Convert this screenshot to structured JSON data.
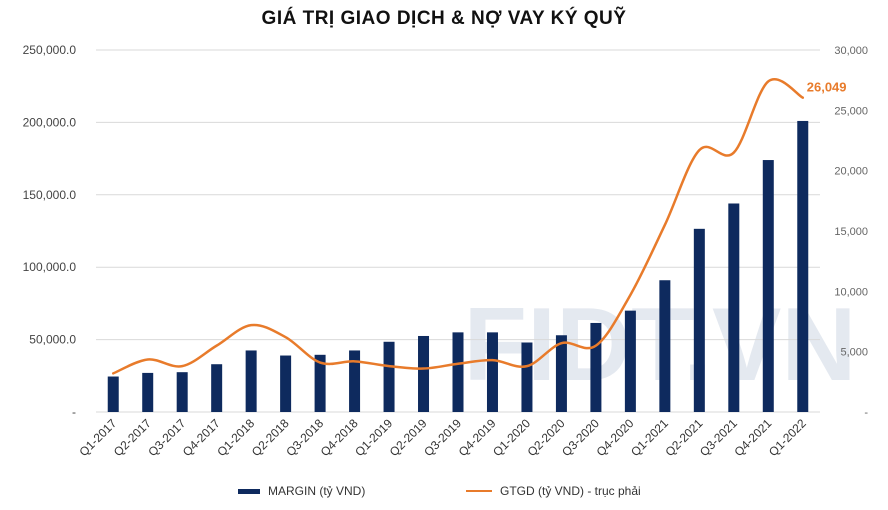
{
  "chart_data": {
    "type": "bar",
    "title": "GIÁ TRỊ GIAO DỊCH & NỢ VAY KÝ QUỸ",
    "categories": [
      "Q1-2017",
      "Q2-2017",
      "Q3-2017",
      "Q4-2017",
      "Q1-2018",
      "Q2-2018",
      "Q3-2018",
      "Q4-2018",
      "Q1-2019",
      "Q2-2019",
      "Q3-2019",
      "Q4-2019",
      "Q1-2020",
      "Q2-2020",
      "Q3-2020",
      "Q4-2020",
      "Q1-2021",
      "Q2-2021",
      "Q3-2021",
      "Q4-2021",
      "Q1-2022"
    ],
    "series": [
      {
        "name": "MARGIN (tỷ VND)",
        "type": "bar",
        "axis": "left",
        "color": "#0e2a5e",
        "values": [
          24500,
          27000,
          27500,
          33000,
          42500,
          39000,
          39500,
          42500,
          48500,
          52500,
          55000,
          55000,
          48000,
          53000,
          61500,
          70000,
          91000,
          126500,
          144000,
          174000,
          201000
        ]
      },
      {
        "name": "GTGD (tỷ VND) - trục phải",
        "type": "line",
        "axis": "right",
        "color": "#e87b2b",
        "values": [
          3200,
          4350,
          3800,
          5500,
          7200,
          6200,
          4100,
          4200,
          3800,
          3600,
          4000,
          4300,
          3800,
          5700,
          5500,
          9700,
          15500,
          21700,
          21500,
          27400,
          26049
        ]
      }
    ],
    "y_left": {
      "min": 0,
      "max": 250000,
      "ticks": [
        "-",
        "50,000.0",
        "100,000.0",
        "150,000.0",
        "200,000.0",
        "250,000.0"
      ]
    },
    "y_right": {
      "min": 0,
      "max": 30000,
      "ticks": [
        "-",
        "5,000",
        "10,000",
        "15,000",
        "20,000",
        "25,000",
        "30,000"
      ]
    },
    "annotation": {
      "text": "26,049"
    },
    "watermark": "FIDT.VN",
    "grid": true,
    "legend_position": "bottom"
  }
}
